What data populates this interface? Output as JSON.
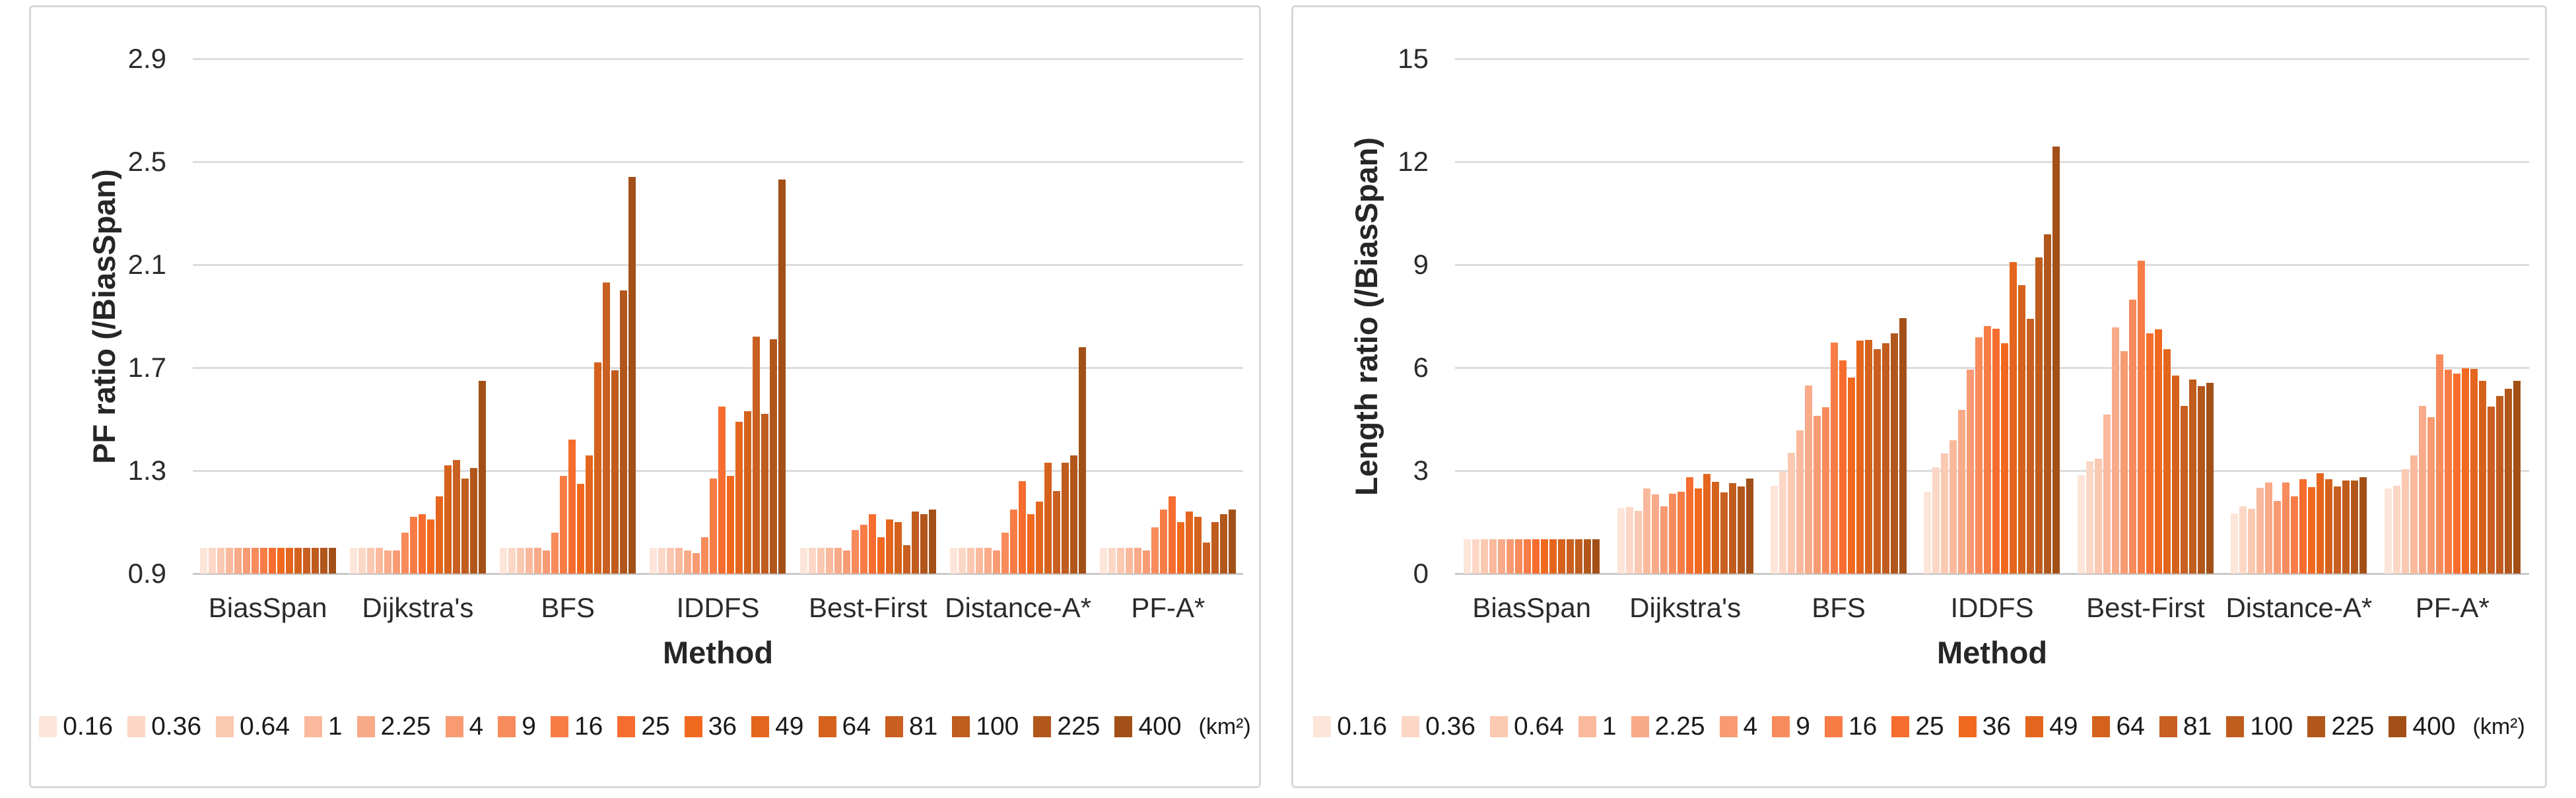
{
  "page": {
    "background": "#ffffff"
  },
  "legend": {
    "unit_label": "(km²)"
  },
  "series_colors": [
    "#fde5d9",
    "#fcd7c6",
    "#fbc8b1",
    "#fab99c",
    "#f9aa88",
    "#f89b73",
    "#f78b5c",
    "#f77c46",
    "#f66d2f",
    "#f1691f",
    "#e4661e",
    "#d5621c",
    "#c95f20",
    "#c05c1e",
    "#b2571c",
    "#a35018"
  ],
  "chart_data": [
    {
      "type": "bar",
      "title": "",
      "ylabel": "PF ratio (/BiasSpan)",
      "xlabel": "Method",
      "ylim": [
        0.9,
        2.9
      ],
      "yticks": [
        "0.9",
        "1.3",
        "1.7",
        "2.1",
        "2.5",
        "2.9"
      ],
      "grid": true,
      "legend_position": "bottom",
      "categories": [
        "BiasSpan",
        "Dijkstra's",
        "BFS",
        "IDDFS",
        "Best-First",
        "Distance-A*",
        "PF-A*"
      ],
      "series": [
        {
          "name": "0.16",
          "values": [
            1.0,
            1.0,
            1.0,
            1.0,
            1.0,
            1.0,
            1.0
          ]
        },
        {
          "name": "0.36",
          "values": [
            1.0,
            1.0,
            1.0,
            1.0,
            1.0,
            1.0,
            1.0
          ]
        },
        {
          "name": "0.64",
          "values": [
            1.0,
            1.0,
            1.0,
            1.0,
            1.0,
            1.0,
            1.0
          ]
        },
        {
          "name": "1",
          "values": [
            1.0,
            1.0,
            1.0,
            1.0,
            1.0,
            1.0,
            1.0
          ]
        },
        {
          "name": "2.25",
          "values": [
            1.0,
            0.99,
            1.0,
            0.99,
            1.0,
            1.0,
            1.0
          ]
        },
        {
          "name": "4",
          "values": [
            1.0,
            0.99,
            0.99,
            0.98,
            0.99,
            0.99,
            0.99
          ]
        },
        {
          "name": "9",
          "values": [
            1.0,
            1.06,
            1.06,
            1.04,
            1.07,
            1.06,
            1.08
          ]
        },
        {
          "name": "16",
          "values": [
            1.0,
            1.12,
            1.28,
            1.27,
            1.09,
            1.15,
            1.15
          ]
        },
        {
          "name": "25",
          "values": [
            1.0,
            1.13,
            1.42,
            1.55,
            1.13,
            1.26,
            1.2
          ]
        },
        {
          "name": "36",
          "values": [
            1.0,
            1.11,
            1.25,
            1.28,
            1.04,
            1.13,
            1.1
          ]
        },
        {
          "name": "49",
          "values": [
            1.0,
            1.2,
            1.36,
            1.49,
            1.11,
            1.18,
            1.14
          ]
        },
        {
          "name": "64",
          "values": [
            1.0,
            1.32,
            1.72,
            1.53,
            1.1,
            1.33,
            1.12
          ]
        },
        {
          "name": "81",
          "values": [
            1.0,
            1.34,
            2.03,
            1.82,
            1.01,
            1.22,
            1.02
          ]
        },
        {
          "name": "100",
          "values": [
            1.0,
            1.27,
            1.69,
            1.52,
            1.14,
            1.33,
            1.1
          ]
        },
        {
          "name": "225",
          "values": [
            1.0,
            1.31,
            2.0,
            1.81,
            1.13,
            1.36,
            1.13
          ]
        },
        {
          "name": "400",
          "values": [
            1.0,
            1.65,
            2.44,
            2.43,
            1.15,
            1.78,
            1.15
          ]
        }
      ]
    },
    {
      "type": "bar",
      "title": "",
      "ylabel": "Length ratio (/BiasSpan)",
      "xlabel": "Method",
      "ylim": [
        0,
        15
      ],
      "yticks": [
        "0",
        "3",
        "6",
        "9",
        "12",
        "15"
      ],
      "grid": true,
      "legend_position": "bottom",
      "categories": [
        "BiasSpan",
        "Dijkstra's",
        "BFS",
        "IDDFS",
        "Best-First",
        "Distance-A*",
        "PF-A*"
      ],
      "series": [
        {
          "name": "0.16",
          "values": [
            1.0,
            1.91,
            2.56,
            2.38,
            2.87,
            1.75,
            2.48
          ]
        },
        {
          "name": "0.36",
          "values": [
            1.0,
            1.94,
            2.98,
            3.09,
            3.27,
            1.96,
            2.56
          ]
        },
        {
          "name": "0.64",
          "values": [
            1.0,
            1.82,
            3.51,
            3.5,
            3.34,
            1.89,
            3.04
          ]
        },
        {
          "name": "1",
          "values": [
            1.0,
            2.49,
            4.18,
            3.88,
            4.63,
            2.5,
            3.44
          ]
        },
        {
          "name": "2.25",
          "values": [
            1.0,
            2.3,
            5.48,
            4.76,
            7.18,
            2.65,
            4.89
          ]
        },
        {
          "name": "4",
          "values": [
            1.0,
            1.96,
            4.6,
            5.95,
            6.48,
            2.12,
            4.56
          ]
        },
        {
          "name": "9",
          "values": [
            1.0,
            2.32,
            4.84,
            6.89,
            7.99,
            2.65,
            6.38
          ]
        },
        {
          "name": "16",
          "values": [
            1.0,
            2.38,
            6.74,
            7.21,
            9.11,
            2.25,
            5.94
          ]
        },
        {
          "name": "25",
          "values": [
            1.0,
            2.81,
            6.21,
            7.14,
            7.0,
            2.75,
            5.83
          ]
        },
        {
          "name": "36",
          "values": [
            1.0,
            2.49,
            5.72,
            6.71,
            7.11,
            2.52,
            5.99
          ]
        },
        {
          "name": "49",
          "values": [
            1.0,
            2.91,
            6.79,
            9.08,
            6.54,
            2.92,
            5.96
          ]
        },
        {
          "name": "64",
          "values": [
            1.0,
            2.68,
            6.81,
            8.41,
            5.76,
            2.75,
            5.61
          ]
        },
        {
          "name": "81",
          "values": [
            1.0,
            2.36,
            6.54,
            7.42,
            4.88,
            2.54,
            4.86
          ]
        },
        {
          "name": "100",
          "values": [
            1.0,
            2.64,
            6.72,
            9.21,
            5.66,
            2.72,
            5.17
          ]
        },
        {
          "name": "225",
          "values": [
            1.0,
            2.54,
            7.0,
            9.88,
            5.47,
            2.72,
            5.39
          ]
        },
        {
          "name": "400",
          "values": [
            1.0,
            2.76,
            7.44,
            12.45,
            5.55,
            2.81,
            5.62
          ]
        }
      ]
    }
  ]
}
